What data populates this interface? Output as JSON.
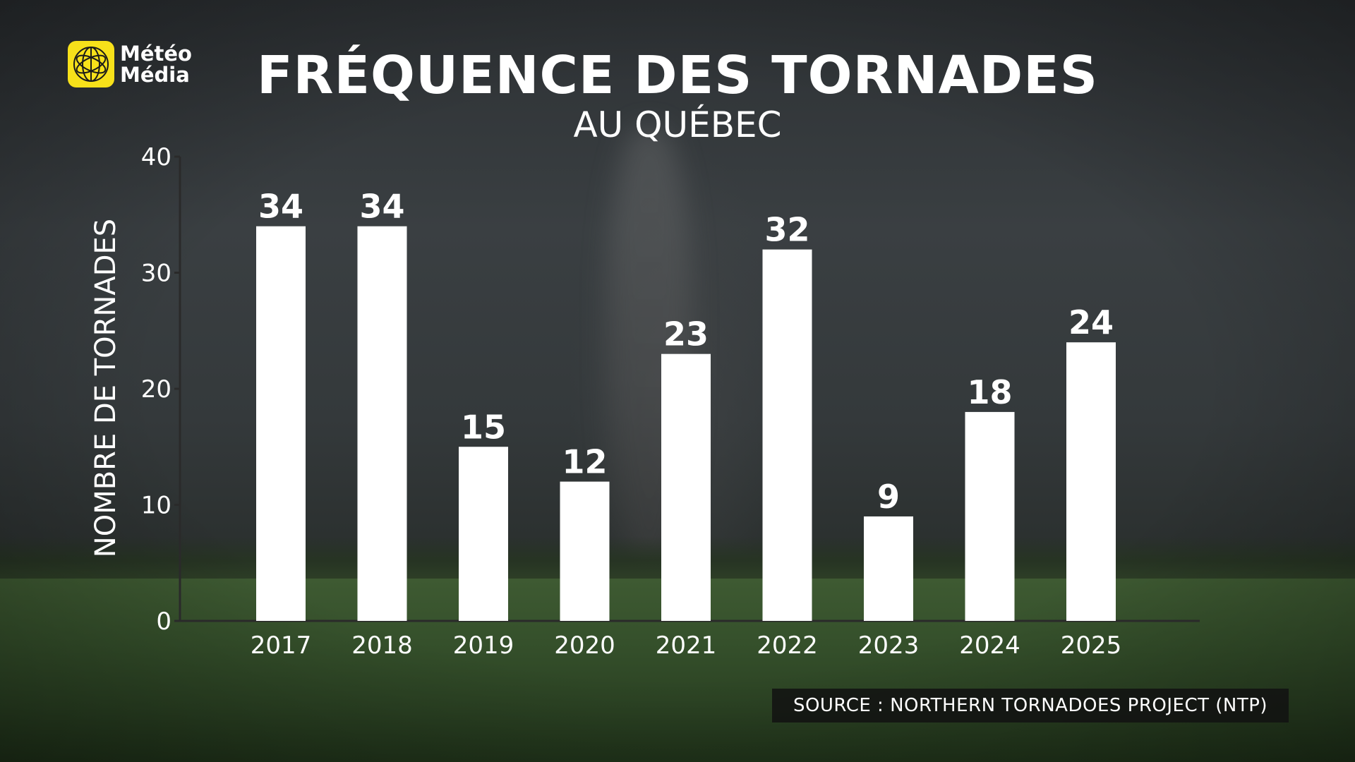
{
  "logo": {
    "line1": "Météo",
    "line2": "Média",
    "icon": "meteomedia-globe-icon",
    "color": "#f7e11a"
  },
  "header": {
    "title": "FRÉQUENCE DES TORNADES",
    "subtitle": "AU QUÉBEC"
  },
  "source": "SOURCE : NORTHERN TORNADOES PROJECT (NTP)",
  "chart_data": {
    "type": "bar",
    "title": "FRÉQUENCE DES TORNADES",
    "subtitle": "AU QUÉBEC",
    "xlabel": "",
    "ylabel": "NOMBRE DE TORNADES",
    "categories": [
      "2017",
      "2018",
      "2019",
      "2020",
      "2021",
      "2022",
      "2023",
      "2024",
      "2025"
    ],
    "values": [
      34,
      34,
      15,
      12,
      23,
      32,
      9,
      18,
      24
    ],
    "ylim": [
      0,
      40
    ],
    "yticks": [
      0,
      10,
      20,
      30,
      40
    ],
    "grid": false,
    "legend": "none",
    "bar_color": "#ffffff",
    "data_labels": true
  }
}
